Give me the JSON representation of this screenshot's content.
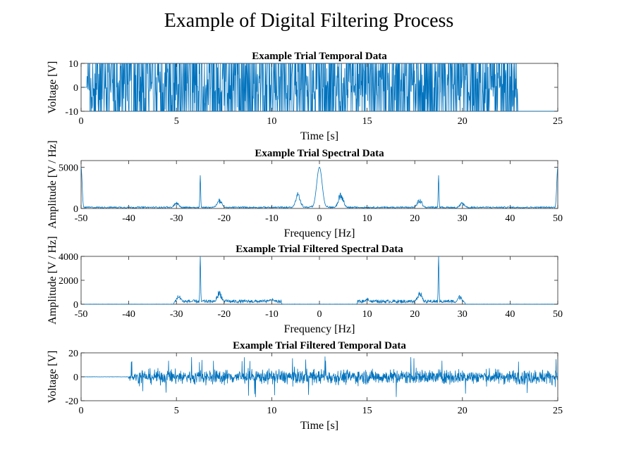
{
  "figure": {
    "title": "Example of Digital Filtering Process"
  },
  "colors": {
    "line": "#0072BD",
    "axes": "#262626"
  },
  "chart_data": [
    {
      "id": "temporal",
      "type": "line",
      "title": "Example Trial Temporal Data",
      "xlabel": "Time [s]",
      "ylabel": "Voltage [V]",
      "xlim": [
        0,
        25
      ],
      "ylim": [
        -10,
        10
      ],
      "xticks": [
        0,
        5,
        10,
        15,
        20,
        25
      ],
      "yticks": [
        -10,
        0,
        10
      ],
      "series": [
        {
          "kind": "saturated_noise",
          "start": 0.3,
          "end": 22.9,
          "amp": 10,
          "tail_value": -10
        }
      ]
    },
    {
      "id": "spectral",
      "type": "line",
      "title": "Example Trial Spectral Data",
      "xlabel": "Frequency [Hz]",
      "ylabel": "Amplitude [V / Hz]",
      "xlim": [
        -50,
        50
      ],
      "ylim": [
        0,
        5800
      ],
      "xticks": [
        -50,
        -40,
        -30,
        -20,
        -10,
        0,
        10,
        20,
        30,
        40,
        50
      ],
      "yticks": [
        0,
        5000
      ],
      "series": [
        {
          "kind": "spectrum",
          "baseline": 150,
          "peaks": [
            [
              -25,
              4000
            ],
            [
              25,
              4000
            ],
            [
              0,
              5000
            ],
            [
              -4.5,
              2000
            ],
            [
              4.5,
              2000
            ],
            [
              -21,
              1200
            ],
            [
              21,
              1200
            ],
            [
              -30,
              800
            ],
            [
              30,
              800
            ],
            [
              -50,
              5000
            ],
            [
              50,
              5000
            ]
          ],
          "bands": []
        }
      ]
    },
    {
      "id": "filtered_spectral",
      "type": "line",
      "title": "Example Trial Filtered Spectral Data",
      "xlabel": "Frequency [Hz]",
      "ylabel": "Amplitude [V / Hz]",
      "xlim": [
        -50,
        50
      ],
      "ylim": [
        0,
        4000
      ],
      "xticks": [
        -50,
        -40,
        -30,
        -20,
        -10,
        0,
        10,
        20,
        30,
        40,
        50
      ],
      "yticks": [
        0,
        2000,
        4000
      ],
      "series": [
        {
          "kind": "spectrum",
          "baseline": 0,
          "passbands": [
            [
              -30,
              -8
            ],
            [
              8,
              30
            ]
          ],
          "band_level": 250,
          "peaks": [
            [
              -25,
              4000
            ],
            [
              25,
              4000
            ],
            [
              -21,
              1200
            ],
            [
              21,
              1200
            ],
            [
              -29.5,
              800
            ],
            [
              29.5,
              800
            ],
            [
              -10,
              550
            ],
            [
              10,
              550
            ]
          ]
        }
      ]
    },
    {
      "id": "filtered_temporal",
      "type": "line",
      "title": "Example Trial Filtered Temporal Data",
      "xlabel": "Time [s]",
      "ylabel": "Voltage [V]",
      "xlim": [
        0,
        25
      ],
      "ylim": [
        -20,
        20
      ],
      "xticks": [
        0,
        5,
        10,
        15,
        20,
        25
      ],
      "yticks": [
        -20,
        0,
        20
      ],
      "series": [
        {
          "kind": "filtered_noise",
          "start": 2.5,
          "ramp_end": 3.0,
          "end": 25,
          "amp": 6,
          "spike": 17
        }
      ]
    }
  ]
}
